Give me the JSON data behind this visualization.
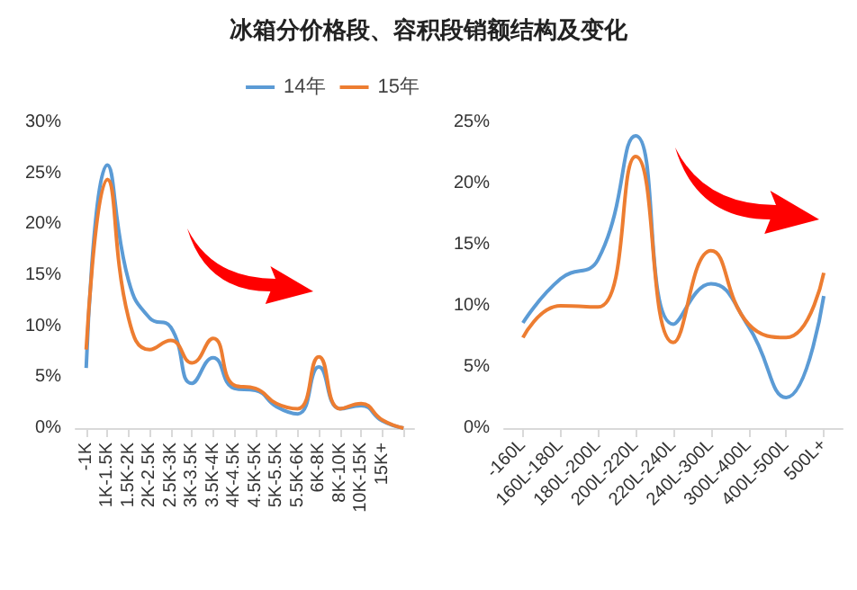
{
  "chart_data": [
    {
      "type": "line",
      "title": "冰箱分价格段、容积段销额结构及变化",
      "categories": [
        "-1K",
        "1K-1.5K",
        "1.5K-2K",
        "2K-2.5K",
        "2.5K-3K",
        "3K-3.5K",
        "3.5K-4K",
        "4K-4.5K",
        "4.5K-5K",
        "5K-5.5K",
        "5.5K-6K",
        "6K-8K",
        "8K-10K",
        "10K-15K",
        "15K+",
        null
      ],
      "series": [
        {
          "name": "14年",
          "color": "#5b9bd5",
          "values": [
            5.9,
            25.8,
            14.5,
            10.8,
            9.9,
            4.4,
            6.9,
            3.9,
            3.7,
            2.1,
            1.4,
            6.0,
            1.9,
            2.2,
            0.7,
            0
          ]
        },
        {
          "name": "15年",
          "color": "#ed7d31",
          "values": [
            7.7,
            24.4,
            10.8,
            7.7,
            8.6,
            6.4,
            8.8,
            4.2,
            3.9,
            2.4,
            1.9,
            7.0,
            1.9,
            2.4,
            0.8,
            0
          ]
        }
      ],
      "ylim": [
        0,
        30
      ],
      "yticks": [
        {
          "value": 0,
          "label": "0%"
        },
        {
          "value": 5,
          "label": "5%"
        },
        {
          "value": 10,
          "label": "10%"
        },
        {
          "value": 15,
          "label": "15%"
        },
        {
          "value": 20,
          "label": "20%"
        },
        {
          "value": 25,
          "label": "25%"
        },
        {
          "value": 30,
          "label": "30%"
        }
      ],
      "legend": "top right",
      "grid": false,
      "marker": "none",
      "line_style": "solid"
    },
    {
      "type": "line",
      "categories": [
        "-160L",
        "160L-180L",
        "180L-200L",
        "200L-220L",
        "220L-240L",
        "240L-300L",
        "300L-400L",
        "400L-500L",
        "500L+"
      ],
      "series": [
        {
          "color": "#5b9bd5",
          "values": [
            8.6,
            12.2,
            13.8,
            23.9,
            8.5,
            11.8,
            8.3,
            2.5,
            10.8
          ]
        },
        {
          "color": "#ed7d31",
          "values": [
            7.4,
            10.0,
            9.9,
            22.2,
            7.0,
            14.5,
            8.5,
            7.4,
            12.7
          ]
        }
      ],
      "ylim": [
        0,
        25
      ],
      "yticks": [
        {
          "value": 0,
          "label": "0%"
        },
        {
          "value": 5,
          "label": "5%"
        },
        {
          "value": 10,
          "label": "10%"
        },
        {
          "value": 15,
          "label": "15%"
        },
        {
          "value": 20,
          "label": "20%"
        },
        {
          "value": 25,
          "label": "25%"
        }
      ],
      "grid": false,
      "marker": "none",
      "line_style": "solid"
    }
  ]
}
